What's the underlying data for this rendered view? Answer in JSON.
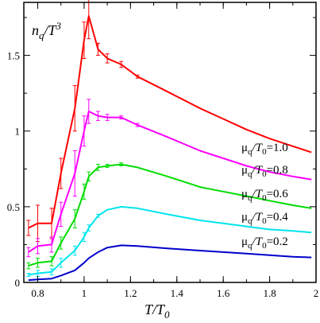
{
  "chart_data": {
    "type": "line",
    "title": "",
    "xlabel": {
      "main": "T/T",
      "sub": "0"
    },
    "ylabel": {
      "main": "n",
      "sub": "q",
      "tail": "/T",
      "sup": "3"
    },
    "xlim": [
      0.74,
      2.0
    ],
    "ylim": [
      0,
      1.85
    ],
    "xticks": [
      0.8,
      1,
      1.2,
      1.4,
      1.6,
      1.8,
      2
    ],
    "xtick_labels": [
      "0.8",
      "1",
      "1.2",
      "1.4",
      "1.6",
      "1.8",
      "2"
    ],
    "yticks": [
      0,
      0.5,
      1,
      1.5
    ],
    "ytick_labels": [
      "0",
      "0.5",
      "1",
      "1.5"
    ],
    "grid": false,
    "legend": "inline labels at right end of curves",
    "series": [
      {
        "name": "μq/T0=1.0",
        "label": {
          "mu": "μ",
          "sub1": "q",
          "slash": "/T",
          "sub2": "0",
          "value": "=1.0"
        },
        "color": "#ff0000",
        "x": [
          0.76,
          0.8,
          0.86,
          0.9,
          0.96,
          1.0,
          1.02,
          1.06,
          1.1,
          1.16,
          1.23,
          1.36,
          1.5,
          1.6,
          1.7,
          1.8,
          1.9,
          1.98
        ],
        "y": [
          0.36,
          0.39,
          0.39,
          0.72,
          1.15,
          1.6,
          1.76,
          1.54,
          1.48,
          1.44,
          1.36,
          1.26,
          1.15,
          1.08,
          1.01,
          0.95,
          0.9,
          0.86
        ],
        "err": [
          0.05,
          0.12,
          0.1,
          0.1,
          0.15,
          0.12,
          0.15,
          0.04,
          0.03,
          0.02,
          0.01,
          0.0,
          0,
          0,
          0,
          0,
          0,
          0
        ]
      },
      {
        "name": "μq/T0=0.8",
        "label": {
          "mu": "μ",
          "sub1": "q",
          "slash": "/T",
          "sub2": "0",
          "value": "=0.8"
        },
        "color": "#ff00ff",
        "x": [
          0.76,
          0.8,
          0.86,
          0.9,
          0.96,
          1.0,
          1.02,
          1.06,
          1.1,
          1.16,
          1.23,
          1.36,
          1.5,
          1.6,
          1.7,
          1.8,
          1.9,
          1.98
        ],
        "y": [
          0.2,
          0.24,
          0.25,
          0.45,
          0.72,
          1.0,
          1.13,
          1.1,
          1.09,
          1.09,
          1.04,
          0.96,
          0.87,
          0.82,
          0.77,
          0.73,
          0.7,
          0.68
        ],
        "err": [
          0.03,
          0.05,
          0.05,
          0.08,
          0.15,
          0.1,
          0.08,
          0.03,
          0.02,
          0.01,
          0.01,
          0,
          0,
          0,
          0,
          0,
          0,
          0
        ]
      },
      {
        "name": "μq/T0=0.6",
        "label": {
          "mu": "μ",
          "sub1": "q",
          "slash": "/T",
          "sub2": "0",
          "value": "=0.6"
        },
        "color": "#00dd00",
        "x": [
          0.76,
          0.8,
          0.86,
          0.9,
          0.96,
          1.0,
          1.02,
          1.06,
          1.1,
          1.16,
          1.23,
          1.36,
          1.5,
          1.6,
          1.7,
          1.8,
          1.9,
          1.98
        ],
        "y": [
          0.11,
          0.13,
          0.14,
          0.26,
          0.42,
          0.6,
          0.7,
          0.76,
          0.77,
          0.78,
          0.76,
          0.7,
          0.63,
          0.6,
          0.57,
          0.54,
          0.51,
          0.49
        ],
        "err": [
          0.02,
          0.03,
          0.03,
          0.04,
          0.06,
          0.05,
          0.03,
          0.02,
          0.01,
          0.01,
          0,
          0,
          0,
          0,
          0,
          0,
          0,
          0
        ]
      },
      {
        "name": "μq/T0=0.4",
        "label": {
          "mu": "μ",
          "sub1": "q",
          "slash": "/T",
          "sub2": "0",
          "value": "=0.4"
        },
        "color": "#00e5ee",
        "x": [
          0.76,
          0.8,
          0.86,
          0.9,
          0.96,
          1.0,
          1.02,
          1.06,
          1.1,
          1.16,
          1.23,
          1.36,
          1.5,
          1.6,
          1.7,
          1.8,
          1.9,
          1.98
        ],
        "y": [
          0.05,
          0.06,
          0.07,
          0.13,
          0.21,
          0.3,
          0.36,
          0.44,
          0.48,
          0.5,
          0.49,
          0.45,
          0.41,
          0.39,
          0.37,
          0.35,
          0.34,
          0.33
        ],
        "err": [
          0.01,
          0.02,
          0.02,
          0.03,
          0.03,
          0.03,
          0.02,
          0.01,
          0,
          0,
          0,
          0,
          0,
          0,
          0,
          0,
          0,
          0
        ]
      },
      {
        "name": "μq/T0=0.2",
        "label": {
          "mu": "μ",
          "sub1": "q",
          "slash": "/T",
          "sub2": "0",
          "value": "=0.2"
        },
        "color": "#0000cc",
        "x": [
          0.76,
          0.8,
          0.86,
          0.9,
          0.96,
          1.0,
          1.02,
          1.06,
          1.1,
          1.16,
          1.23,
          1.36,
          1.5,
          1.6,
          1.7,
          1.8,
          1.9,
          1.98
        ],
        "y": [
          0.015,
          0.02,
          0.025,
          0.045,
          0.08,
          0.13,
          0.16,
          0.2,
          0.23,
          0.245,
          0.24,
          0.225,
          0.21,
          0.2,
          0.19,
          0.18,
          0.17,
          0.165
        ],
        "err": [
          0,
          0,
          0,
          0,
          0,
          0,
          0,
          0,
          0,
          0,
          0,
          0,
          0,
          0,
          0,
          0,
          0,
          0
        ]
      }
    ]
  }
}
